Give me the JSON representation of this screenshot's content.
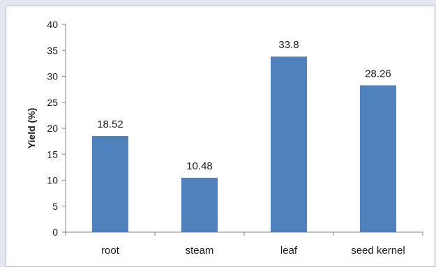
{
  "chart_data": {
    "type": "bar",
    "title": "",
    "xlabel": "",
    "ylabel": "Yield (%)",
    "categories": [
      "root",
      "steam",
      "leaf",
      "seed kernel"
    ],
    "values": [
      18.52,
      10.48,
      33.8,
      28.26
    ],
    "data_labels": [
      "18.52",
      "10.48",
      "33.8",
      "28.26"
    ],
    "ylim": [
      0,
      40
    ],
    "yticks": [
      0,
      5,
      10,
      15,
      20,
      25,
      30,
      35,
      40
    ],
    "grid": false,
    "legend": "none",
    "bar_color": "#4f81bd"
  }
}
